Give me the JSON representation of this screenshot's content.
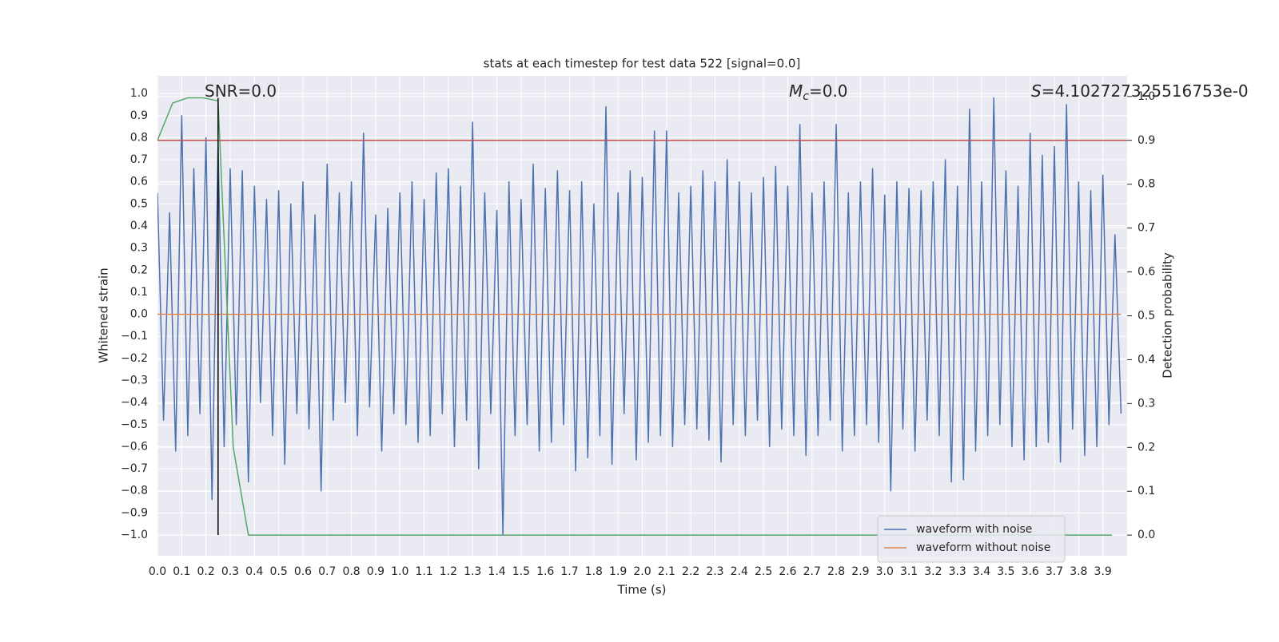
{
  "chart_data": {
    "type": "line",
    "title": "stats at each timestep for test data 522 [signal=0.0]",
    "x_label": "Time (s)",
    "y_label": "Whitened strain",
    "y2_label": "Detection probability",
    "annotations": [
      {
        "text": "SNR=0.0"
      },
      {
        "italic": "M",
        "sub": "c",
        "text": "=0.0"
      },
      {
        "italic": "S",
        "text": "=4.102727325516753e-0"
      }
    ],
    "xlim": [
      0,
      4.0
    ],
    "ylim": [
      -1.094,
      1.08
    ],
    "y2lim": [
      -0.047,
      1.047
    ],
    "xticks": [
      {
        "value": 0,
        "label": "0.0"
      },
      0.1,
      0.2,
      0.3,
      0.4,
      0.5,
      0.6,
      0.7,
      0.8,
      0.9,
      {
        "value": 1,
        "label": "1.0"
      },
      1.1,
      1.2,
      1.3,
      1.4,
      1.5,
      1.6,
      1.7,
      1.8,
      1.9,
      {
        "value": 2,
        "label": "2.0"
      },
      2.1,
      2.2,
      2.3,
      2.4,
      2.5,
      2.6,
      2.7,
      2.8,
      2.9,
      {
        "value": 3,
        "label": "3.0"
      },
      3.1,
      3.2,
      3.3,
      3.4,
      3.5,
      3.6,
      3.7,
      3.8,
      3.9
    ],
    "yticks": [
      {
        "value": 1,
        "label": "1.0"
      },
      0.9,
      0.8,
      0.7,
      0.6,
      0.5,
      0.4,
      0.3,
      0.2,
      0.1,
      {
        "value": 0,
        "label": "0.0"
      },
      {
        "value": -0.1,
        "label": "−0.1"
      },
      {
        "value": -0.2,
        "label": "−0.2"
      },
      {
        "value": -0.3,
        "label": "−0.3"
      },
      {
        "value": -0.4,
        "label": "−0.4"
      },
      {
        "value": -0.5,
        "label": "−0.5"
      },
      {
        "value": -0.6,
        "label": "−0.6"
      },
      {
        "value": -0.7,
        "label": "−0.7"
      },
      {
        "value": -0.8,
        "label": "−0.8"
      },
      {
        "value": -0.9,
        "label": "−0.9"
      },
      {
        "value": -1,
        "label": "−1.0"
      }
    ],
    "y2ticks": [
      {
        "value": 0,
        "label": "0.0"
      },
      0.1,
      0.2,
      0.3,
      0.4,
      0.5,
      0.6,
      0.7,
      0.8,
      0.9,
      {
        "value": 1,
        "label": "1.0"
      }
    ],
    "grid": true,
    "legend": "lower right",
    "series": [
      {
        "name": "waveform with noise",
        "color": "#4c72b0",
        "x": [
          0,
          0.025,
          0.05,
          0.075,
          0.1,
          0.125,
          0.15,
          0.175,
          0.2,
          0.225,
          0.25,
          0.275,
          0.3,
          0.325,
          0.35,
          0.375,
          0.4,
          0.425,
          0.45,
          0.475,
          0.5,
          0.525,
          0.55,
          0.575,
          0.6,
          0.625,
          0.65,
          0.675,
          0.7,
          0.725,
          0.75,
          0.775,
          0.8,
          0.825,
          0.85,
          0.875,
          0.9,
          0.925,
          0.95,
          0.975,
          1,
          1.025,
          1.05,
          1.075,
          1.1,
          1.125,
          1.15,
          1.175,
          1.2,
          1.225,
          1.25,
          1.275,
          1.3,
          1.325,
          1.35,
          1.375,
          1.4,
          1.425,
          1.45,
          1.475,
          1.5,
          1.525,
          1.55,
          1.575,
          1.6,
          1.625,
          1.65,
          1.675,
          1.7,
          1.725,
          1.75,
          1.775,
          1.8,
          1.825,
          1.85,
          1.875,
          1.9,
          1.925,
          1.95,
          1.975,
          2,
          2.025,
          2.05,
          2.075,
          2.1,
          2.125,
          2.15,
          2.175,
          2.2,
          2.225,
          2.25,
          2.275,
          2.3,
          2.325,
          2.35,
          2.375,
          2.4,
          2.425,
          2.45,
          2.475,
          2.5,
          2.525,
          2.55,
          2.575,
          2.6,
          2.625,
          2.65,
          2.675,
          2.7,
          2.725,
          2.75,
          2.775,
          2.8,
          2.825,
          2.85,
          2.875,
          2.9,
          2.925,
          2.95,
          2.975,
          3,
          3.025,
          3.05,
          3.075,
          3.1,
          3.125,
          3.15,
          3.175,
          3.2,
          3.225,
          3.25,
          3.275,
          3.3,
          3.325,
          3.35,
          3.375,
          3.4,
          3.425,
          3.45,
          3.475,
          3.5,
          3.525,
          3.55,
          3.575,
          3.6,
          3.625,
          3.65,
          3.675,
          3.7,
          3.725,
          3.75,
          3.775,
          3.8,
          3.825,
          3.85,
          3.875,
          3.9,
          3.925,
          3.95,
          3.975
        ],
        "values": [
          0.55,
          -0.48,
          0.46,
          -0.62,
          0.9,
          -0.55,
          0.66,
          -0.45,
          0.8,
          -0.84,
          0.77,
          -0.6,
          0.66,
          -0.5,
          0.65,
          -0.76,
          0.58,
          -0.4,
          0.52,
          -0.55,
          0.56,
          -0.68,
          0.5,
          -0.45,
          0.6,
          -0.52,
          0.45,
          -0.8,
          0.68,
          -0.48,
          0.55,
          -0.4,
          0.6,
          -0.55,
          0.82,
          -0.42,
          0.45,
          -0.62,
          0.48,
          -0.45,
          0.55,
          -0.5,
          0.6,
          -0.58,
          0.52,
          -0.55,
          0.64,
          -0.45,
          0.66,
          -0.6,
          0.58,
          -0.48,
          0.87,
          -0.7,
          0.55,
          -0.45,
          0.47,
          -1.0,
          0.6,
          -0.55,
          0.52,
          -0.5,
          0.68,
          -0.62,
          0.57,
          -0.58,
          0.65,
          -0.5,
          0.56,
          -0.71,
          0.6,
          -0.65,
          0.5,
          -0.55,
          0.94,
          -0.68,
          0.55,
          -0.45,
          0.65,
          -0.66,
          0.62,
          -0.58,
          0.83,
          -0.55,
          0.83,
          -0.6,
          0.55,
          -0.5,
          0.58,
          -0.52,
          0.65,
          -0.57,
          0.6,
          -0.67,
          0.7,
          -0.5,
          0.6,
          -0.55,
          0.55,
          -0.48,
          0.62,
          -0.6,
          0.67,
          -0.52,
          0.58,
          -0.55,
          0.86,
          -0.64,
          0.55,
          -0.55,
          0.6,
          -0.48,
          0.86,
          -0.62,
          0.55,
          -0.55,
          0.6,
          -0.5,
          0.66,
          -0.58,
          0.54,
          -0.8,
          0.6,
          -0.52,
          0.57,
          -0.62,
          0.56,
          -0.48,
          0.6,
          -0.55,
          0.7,
          -0.76,
          0.58,
          -0.75,
          0.93,
          -0.62,
          0.6,
          -0.55,
          0.98,
          -0.5,
          0.65,
          -0.6,
          0.58,
          -0.66,
          0.82,
          -0.6,
          0.72,
          -0.58,
          0.76,
          -0.67,
          0.95,
          -0.52,
          0.6,
          -0.64,
          0.56,
          -0.6,
          0.63,
          -0.5,
          0.36,
          -0.45
        ]
      },
      {
        "name": "waveform without noise",
        "color": "#dd8452",
        "x": [
          0,
          3.975
        ],
        "values": [
          0,
          0
        ]
      },
      {
        "color": "#55a868",
        "axis": "y2",
        "x": [
          0,
          0.0625,
          0.125,
          0.1875,
          0.25,
          0.3125,
          0.375,
          3.9375
        ],
        "values": [
          0.9,
          0.985,
          0.997,
          0.997,
          0.99,
          0.2,
          0,
          0
        ]
      }
    ],
    "hlines": [
      {
        "y": 0.9,
        "axis": "y2",
        "color": "#c44e52"
      }
    ],
    "vlines": [
      {
        "x": 0.25,
        "ymin": -1.0,
        "ymax": 0.98,
        "color": "#000000"
      }
    ]
  }
}
